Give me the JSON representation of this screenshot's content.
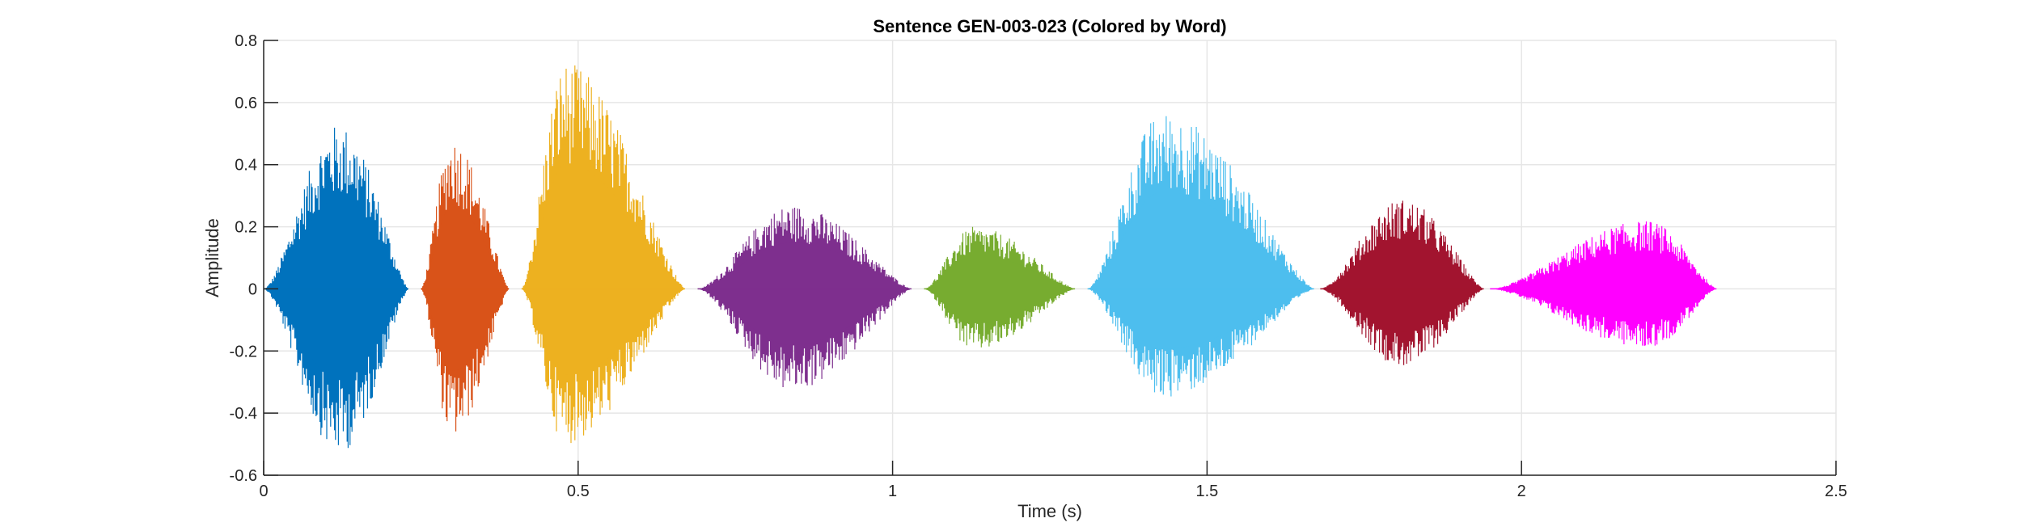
{
  "chart_data": {
    "type": "line",
    "title": "Sentence GEN-003-023 (Colored by Word)",
    "xlabel": "Time (s)",
    "ylabel": "Amplitude",
    "xlim": [
      0,
      2.5
    ],
    "ylim": [
      -0.6,
      0.8
    ],
    "xticks": [
      0,
      0.5,
      1,
      1.5,
      2,
      2.5
    ],
    "xtick_labels": [
      "0",
      "0.5",
      "1",
      "1.5",
      "2",
      "2.5"
    ],
    "yticks": [
      -0.6,
      -0.4,
      -0.2,
      0,
      0.2,
      0.4,
      0.6,
      0.8
    ],
    "ytick_labels": [
      "-0.6",
      "-0.4",
      "-0.2",
      "0",
      "0.2",
      "0.4",
      "0.6",
      "0.8"
    ],
    "grid": true,
    "series": [
      {
        "color": "#0072BD",
        "start": 0.0,
        "end": 0.23,
        "peak_time": 0.12,
        "max": 0.53,
        "min": -0.53
      },
      {
        "color": "#D95319",
        "start": 0.25,
        "end": 0.39,
        "peak_time": 0.3,
        "max": 0.49,
        "min": -0.48
      },
      {
        "color": "#EDB120",
        "start": 0.41,
        "end": 0.67,
        "peak_time": 0.48,
        "max": 0.73,
        "min": -0.5
      },
      {
        "color": "#7E2F8E",
        "start": 0.69,
        "end": 1.03,
        "peak_time": 0.84,
        "max": 0.27,
        "min": -0.33
      },
      {
        "color": "#77AC30",
        "start": 1.05,
        "end": 1.29,
        "peak_time": 1.13,
        "max": 0.2,
        "min": -0.2
      },
      {
        "color": "#4DBEEE",
        "start": 1.31,
        "end": 1.67,
        "peak_time": 1.43,
        "max": 0.57,
        "min": -0.35
      },
      {
        "color": "#A2142F",
        "start": 1.68,
        "end": 1.94,
        "peak_time": 1.81,
        "max": 0.29,
        "min": -0.25
      },
      {
        "color": "#FF00FF",
        "start": 1.95,
        "end": 2.31,
        "peak_time": 2.2,
        "max": 0.22,
        "min": -0.19
      }
    ]
  }
}
